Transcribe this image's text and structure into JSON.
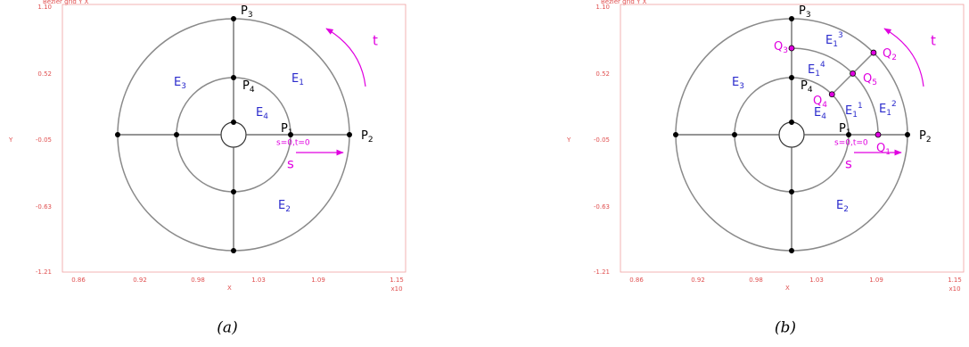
{
  "panels": [
    {
      "header": "Bezier grid Y  X",
      "y_label": "Y",
      "x_label": "X",
      "y_ticks": [
        "1.10",
        "0.52",
        "-0.05",
        "-0.63",
        "-1.21"
      ],
      "x_ticks": [
        "0.86",
        "0.92",
        "0.98",
        "1.03",
        "1.09",
        "1.15"
      ],
      "x_scale": "x10",
      "points": [
        {
          "main": "P",
          "sub": "3"
        },
        {
          "main": "P",
          "sub": "4"
        },
        {
          "main": "P",
          "sub": "1"
        },
        {
          "main": "P",
          "sub": "2"
        }
      ],
      "regions": [
        {
          "main": "E",
          "sub": "1"
        },
        {
          "main": "E",
          "sub": "3"
        },
        {
          "main": "E",
          "sub": "4"
        },
        {
          "main": "E",
          "sub": "2"
        }
      ],
      "origin": "s=0,t=0",
      "s_label": "s",
      "t_label": "t",
      "caption": "(a)"
    },
    {
      "header": "Bezier grid Y  X",
      "y_label": "Y",
      "x_label": "X",
      "y_ticks": [
        "1.10",
        "0.52",
        "-0.05",
        "-0.63",
        "-1.21"
      ],
      "x_ticks": [
        "0.86",
        "0.92",
        "0.98",
        "1.03",
        "1.09",
        "1.15"
      ],
      "x_scale": "x10",
      "points": [
        {
          "main": "P",
          "sub": "3"
        },
        {
          "main": "P",
          "sub": "4"
        },
        {
          "main": "P",
          "sub": "1"
        },
        {
          "main": "P",
          "sub": "2"
        }
      ],
      "regions": [
        {
          "main": "E",
          "sub": "3"
        },
        {
          "main": "E",
          "sub": "4"
        },
        {
          "main": "E",
          "sub": "2"
        },
        {
          "main": "E",
          "sub": "1",
          "sup": "3"
        },
        {
          "main": "E",
          "sub": "1",
          "sup": "4"
        },
        {
          "main": "E",
          "sub": "1",
          "sup": "1"
        },
        {
          "main": "E",
          "sub": "1",
          "sup": "2"
        }
      ],
      "subpoints": [
        {
          "main": "Q",
          "sub": "3"
        },
        {
          "main": "Q",
          "sub": "2"
        },
        {
          "main": "Q",
          "sub": "5"
        },
        {
          "main": "Q",
          "sub": "4"
        },
        {
          "main": "Q",
          "sub": "1"
        }
      ],
      "origin": "s=0,t=0",
      "s_label": "s",
      "t_label": "t",
      "caption": "(b)"
    }
  ]
}
